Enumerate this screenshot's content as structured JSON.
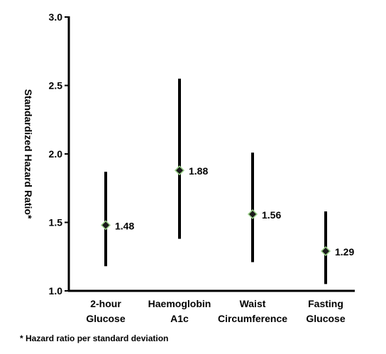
{
  "chart_data": {
    "type": "scatter",
    "title": "",
    "xlabel": "",
    "ylabel": "Standardized Hazard Ratio*",
    "ylim": [
      1.0,
      3.0
    ],
    "yticks": [
      "1.0",
      "1.5",
      "2.0",
      "2.5",
      "3.0"
    ],
    "grid": false,
    "legend": "none",
    "categories": [
      [
        "2-hour",
        "Glucose"
      ],
      [
        "Haemoglobin",
        "A1c"
      ],
      [
        "Waist",
        "Circumference"
      ],
      [
        "Fasting",
        "Glucose"
      ]
    ],
    "values": [
      1.48,
      1.88,
      1.56,
      1.29
    ],
    "value_labels": [
      "1.48",
      "1.88",
      "1.56",
      "1.29"
    ],
    "ci_lower": [
      1.18,
      1.38,
      1.21,
      1.05
    ],
    "ci_upper": [
      1.87,
      2.55,
      2.01,
      1.58
    ],
    "footnote": "* Hazard ratio per standard deviation",
    "colors": {
      "axis": "#000000",
      "error_bar": "#000000",
      "marker_fill": "#1a1a1a",
      "marker_outline": "#9bd08a",
      "text": "#000000"
    }
  }
}
